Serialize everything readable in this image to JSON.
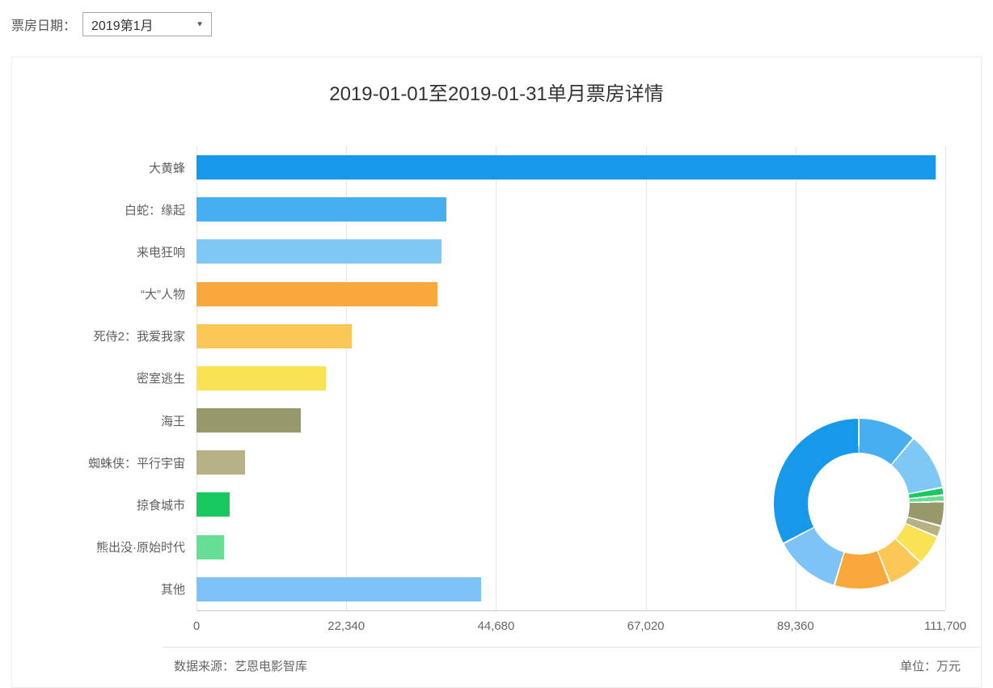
{
  "page": {
    "filter_label": "票房日期：",
    "date_select": {
      "value": "2019第1月",
      "caret": "▼"
    }
  },
  "card": {
    "footer": {
      "source": "数据来源：艺恩电影智库",
      "unit": "单位：万元"
    }
  },
  "chart_data": [
    {
      "type": "bar",
      "orientation": "horizontal",
      "title": "2019-01-01至2019-01-31单月票房详情",
      "categories": [
        "大黄蜂",
        "白蛇：缘起",
        "来电狂响",
        "“大”人物",
        "死侍2：我爱我家",
        "密室逃生",
        "海王",
        "蜘蛛侠：平行宇宙",
        "掠食城市",
        "熊出没·原始时代",
        "其他"
      ],
      "values": [
        110300,
        37300,
        36600,
        35900,
        23200,
        19300,
        15600,
        7200,
        4900,
        4100,
        42500
      ],
      "colors": [
        "#1898e9",
        "#46aff1",
        "#7fc7f4",
        "#f9a83c",
        "#fbc757",
        "#f9e254",
        "#98996b",
        "#b6b285",
        "#17c95f",
        "#66df95",
        "#7dc3f8"
      ],
      "xlim": [
        0,
        111700
      ],
      "x_ticks": [
        0,
        22340,
        44680,
        67020,
        89360,
        111700
      ],
      "x_tick_labels": [
        "0",
        "22,340",
        "44,680",
        "67,020",
        "89,360",
        "111,700"
      ],
      "grid": true,
      "unit": "万元"
    },
    {
      "type": "pie",
      "donut": true,
      "start_angle_deg": 0,
      "direction": "clockwise-from-top",
      "slices": [
        {
          "label": "白蛇：缘起",
          "value": 37300,
          "color": "#46aff1"
        },
        {
          "label": "来电狂响",
          "value": 36600,
          "color": "#7fc7f4"
        },
        {
          "label": "掠食城市",
          "value": 4900,
          "color": "#17c95f"
        },
        {
          "label": "熊出没·原始时代",
          "value": 4100,
          "color": "#66df95"
        },
        {
          "label": "海王",
          "value": 15600,
          "color": "#98996b"
        },
        {
          "label": "蜘蛛侠：平行宇宙",
          "value": 7200,
          "color": "#b6b285"
        },
        {
          "label": "密室逃生",
          "value": 19300,
          "color": "#f9e254"
        },
        {
          "label": "死侍2：我爱我家",
          "value": 23200,
          "color": "#fbc757"
        },
        {
          "label": "“大”人物",
          "value": 35900,
          "color": "#f9a83c"
        },
        {
          "label": "其他",
          "value": 42500,
          "color": "#7dc3f8"
        },
        {
          "label": "大黄蜂",
          "value": 110300,
          "color": "#1898e9"
        }
      ]
    }
  ]
}
